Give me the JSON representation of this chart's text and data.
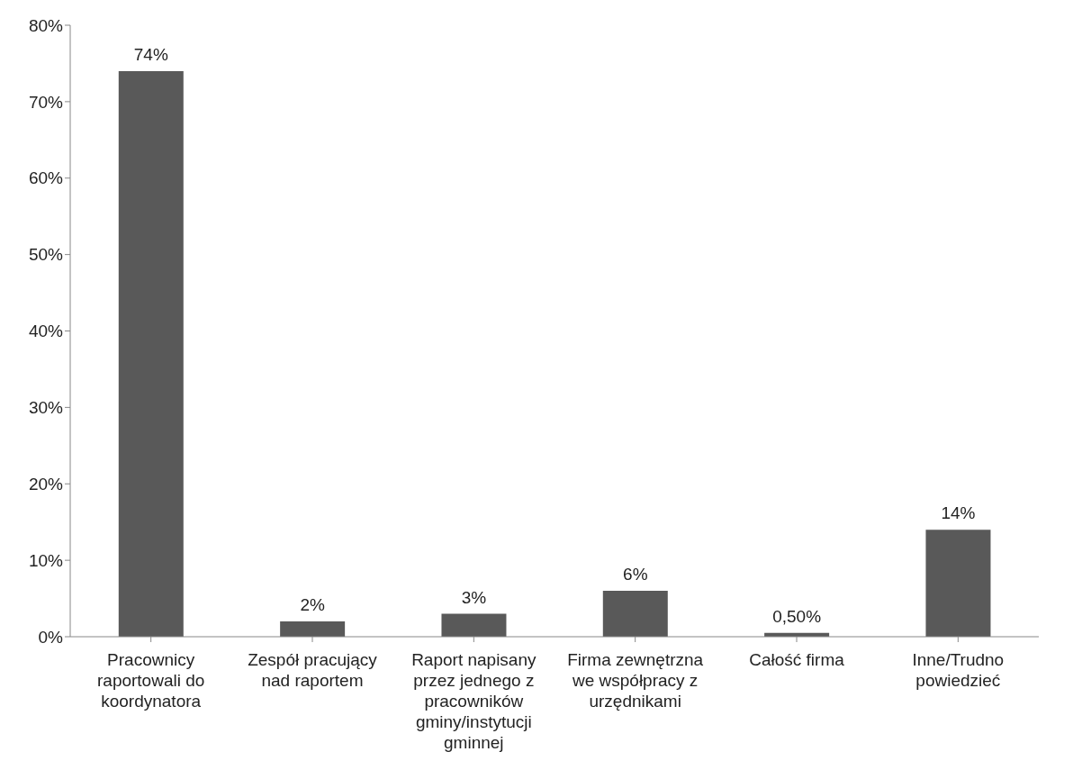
{
  "chart_data": {
    "type": "bar",
    "categories": [
      "Pracownicy raportowali do koordynatora",
      "Zespół pracujący nad raportem",
      "Raport napisany przez jednego z pracowników gminy/instytucji gminnej",
      "Firma zewnętrzna we współpracy z urzędnikami",
      "Całość firma",
      "Inne/Trudno powiedzieć"
    ],
    "values": [
      74,
      2,
      3,
      6,
      0.5,
      14
    ],
    "value_labels": [
      "74%",
      "2%",
      "3%",
      "6%",
      "0,50%",
      "14%"
    ],
    "color": "#595959",
    "ylim": [
      0,
      80
    ],
    "yticks": [
      {
        "value": 0,
        "label": "0%"
      },
      {
        "value": 10,
        "label": "10%"
      },
      {
        "value": 20,
        "label": "20%"
      },
      {
        "value": 30,
        "label": "30%"
      },
      {
        "value": 40,
        "label": "40%"
      },
      {
        "value": 50,
        "label": "50%"
      },
      {
        "value": 60,
        "label": "60%"
      },
      {
        "value": 70,
        "label": "70%"
      },
      {
        "value": 80,
        "label": "80%"
      }
    ],
    "grid": false
  }
}
